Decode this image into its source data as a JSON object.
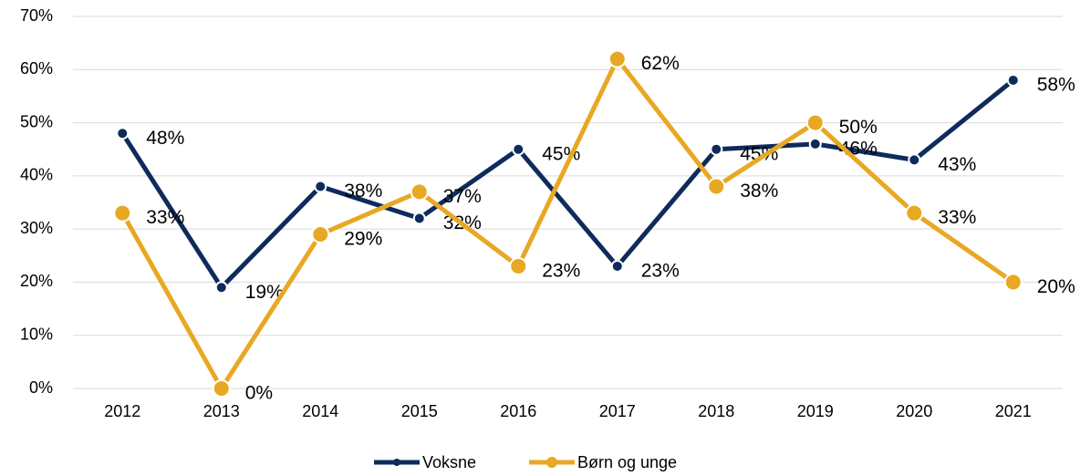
{
  "chart_data": {
    "type": "line",
    "categories": [
      "2012",
      "2013",
      "2014",
      "2015",
      "2016",
      "2017",
      "2018",
      "2019",
      "2020",
      "2021"
    ],
    "series": [
      {
        "name": "Voksne",
        "color": "#0e2b5c",
        "values": [
          48,
          19,
          38,
          32,
          45,
          23,
          45,
          46,
          43,
          58
        ],
        "value_labels": [
          "48%",
          "19%",
          "38%",
          "32%",
          "45%",
          "23%",
          "45%",
          "46%",
          "43%",
          "58%"
        ]
      },
      {
        "name": "Børn og unge",
        "color": "#e8a823",
        "values": [
          33,
          0,
          29,
          37,
          23,
          62,
          38,
          50,
          33,
          20
        ],
        "value_labels": [
          "33%",
          "0%",
          "29%",
          "37%",
          "23%",
          "62%",
          "38%",
          "50%",
          "33%",
          "20%"
        ]
      }
    ],
    "ylim": [
      0,
      70
    ],
    "yticks": [
      {
        "value": 0,
        "label": "0%"
      },
      {
        "value": 10,
        "label": "10%"
      },
      {
        "value": 20,
        "label": "20%"
      },
      {
        "value": 30,
        "label": "30%"
      },
      {
        "value": 40,
        "label": "40%"
      },
      {
        "value": 50,
        "label": "50%"
      },
      {
        "value": 60,
        "label": "60%"
      },
      {
        "value": 70,
        "label": "70%"
      }
    ],
    "grid": true,
    "legend": "bottom"
  }
}
